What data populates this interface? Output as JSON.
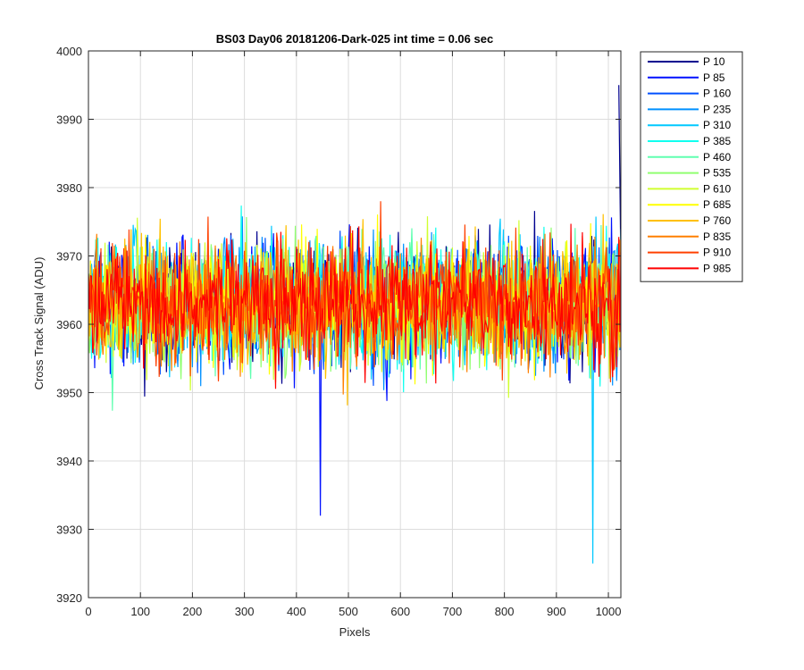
{
  "chart_data": {
    "type": "line",
    "title": "BS03 Day06 20181206-Dark-025 int time = 0.06 sec",
    "xlabel": "Pixels",
    "ylabel": "Cross Track Signal (ADU)",
    "xlim": [
      0,
      1024
    ],
    "ylim": [
      3920,
      4000
    ],
    "xticks": [
      0,
      100,
      200,
      300,
      400,
      500,
      600,
      700,
      800,
      900,
      1000
    ],
    "yticks": [
      3920,
      3930,
      3940,
      3950,
      3960,
      3970,
      3980,
      3990,
      4000
    ],
    "grid": true,
    "legend_position": "outside-top-right",
    "noise": {
      "mean": 3963,
      "typical_range": [
        3940,
        3988
      ],
      "extremes": {
        "max": 3995,
        "min": 3925
      }
    },
    "series": [
      {
        "name": "P 10",
        "color": "#00008f"
      },
      {
        "name": "P 85",
        "color": "#0010ff"
      },
      {
        "name": "P 160",
        "color": "#0050ff"
      },
      {
        "name": "P 235",
        "color": "#0090ff"
      },
      {
        "name": "P 310",
        "color": "#00c8ff"
      },
      {
        "name": "P 385",
        "color": "#10ffef"
      },
      {
        "name": "P 460",
        "color": "#60ffb0"
      },
      {
        "name": "P 535",
        "color": "#90ff70"
      },
      {
        "name": "P 610",
        "color": "#d0ff30"
      },
      {
        "name": "P 685",
        "color": "#ffff00"
      },
      {
        "name": "P 760",
        "color": "#ffc000"
      },
      {
        "name": "P 835",
        "color": "#ff8000"
      },
      {
        "name": "P 910",
        "color": "#ff4000"
      },
      {
        "name": "P 985",
        "color": "#ff0000"
      }
    ]
  }
}
